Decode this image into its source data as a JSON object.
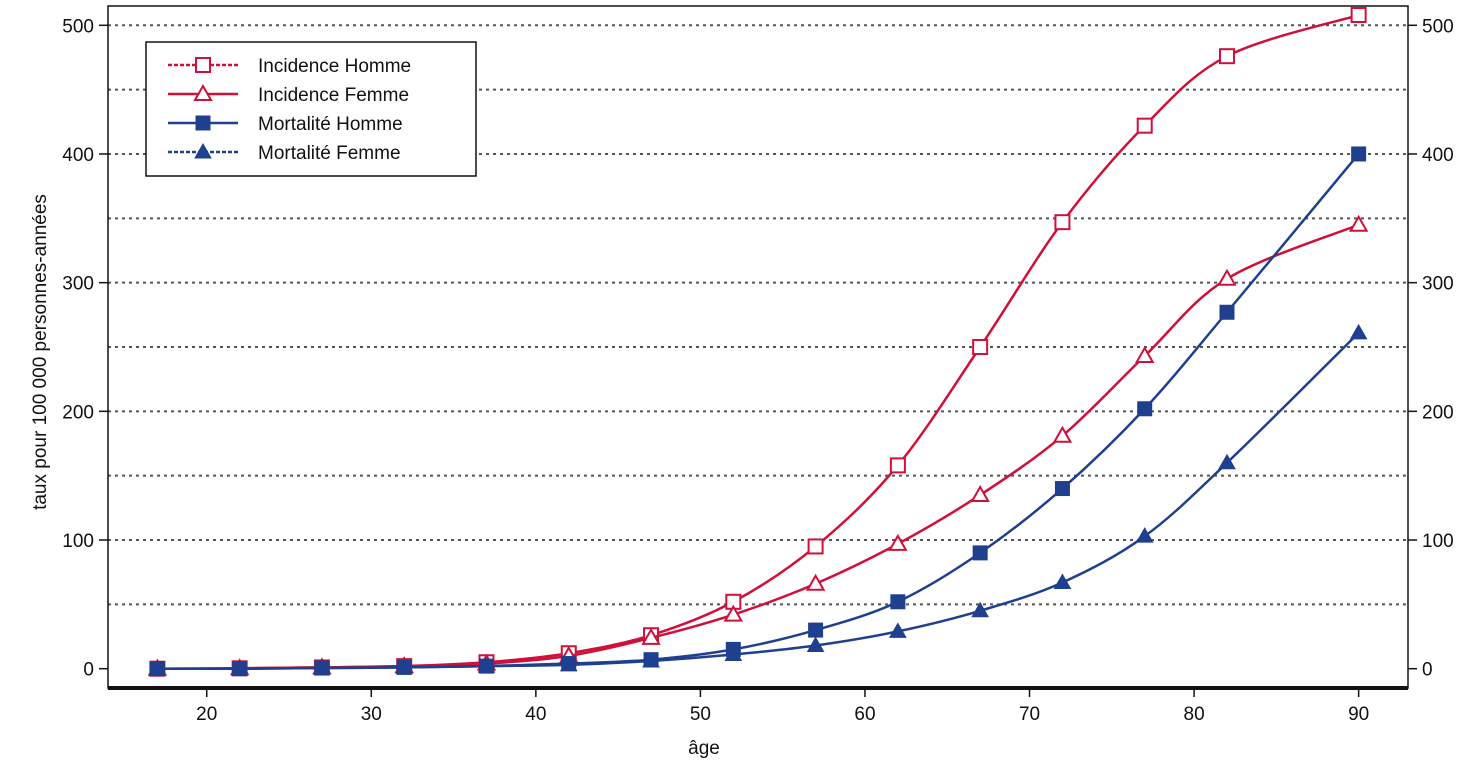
{
  "chart_data": {
    "type": "line",
    "title": "",
    "xlabel": "âge",
    "ylabel": "taux pour 100 000 personnes-années",
    "xlim": [
      14,
      93
    ],
    "ylim": [
      -15,
      515
    ],
    "x_ticks": [
      20,
      30,
      40,
      50,
      60,
      70,
      80,
      90
    ],
    "y_ticks": [
      0,
      100,
      200,
      300,
      400,
      500
    ],
    "grid_y": [
      50,
      100,
      150,
      200,
      250,
      300,
      350,
      400,
      450,
      500
    ],
    "grid": "horizontal dotted",
    "right_axis_mirror": true,
    "legend_position": "top-left",
    "x": [
      17,
      22,
      27,
      32,
      37,
      42,
      47,
      52,
      57,
      62,
      67,
      72,
      77,
      82,
      90
    ],
    "series": [
      {
        "name": "Incidence Homme",
        "color": "#d0103a",
        "marker": "square-open",
        "values": [
          0,
          0.3,
          1,
          2,
          5,
          12,
          26,
          52,
          95,
          158,
          250,
          347,
          422,
          476,
          508
        ]
      },
      {
        "name": "Incidence Femme",
        "color": "#d0103a",
        "marker": "triangle-open",
        "values": [
          0,
          0.3,
          1,
          2,
          4,
          10,
          24,
          42,
          66,
          97,
          135,
          181,
          243,
          303,
          345
        ]
      },
      {
        "name": "Mortalité Homme",
        "color": "#1f3f8f",
        "marker": "square-filled",
        "values": [
          0,
          0,
          0.5,
          1,
          2,
          4,
          7,
          15,
          30,
          52,
          90,
          140,
          202,
          277,
          400
        ]
      },
      {
        "name": "Mortalité Femme",
        "color": "#1f3f8f",
        "marker": "triangle-filled",
        "values": [
          0,
          0,
          0.5,
          1,
          2,
          3,
          6,
          11,
          18,
          29,
          45,
          67,
          103,
          160,
          261
        ]
      }
    ]
  }
}
